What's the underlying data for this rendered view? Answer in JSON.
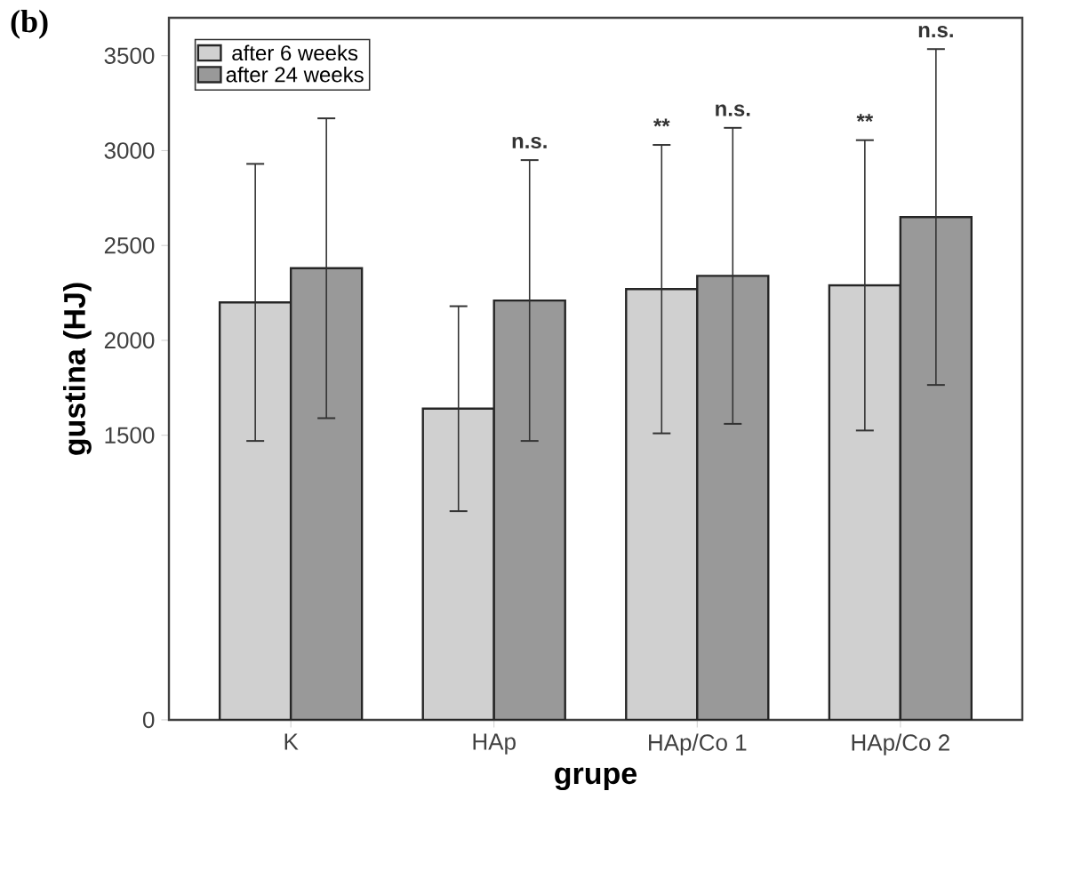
{
  "chart_data": {
    "type": "bar",
    "xlabel": "grupe",
    "ylabel": "gustina (HJ)",
    "categories": [
      "K",
      "HAp",
      "HAp/Co 1",
      "HAp/Co 2"
    ],
    "series": [
      {
        "name": "after 6 weeks",
        "color": "#d0d0d0",
        "values": [
          2200,
          1640,
          2270,
          2290
        ],
        "errors": [
          730,
          540,
          760,
          765
        ]
      },
      {
        "name": "after 24 weeks",
        "color": "#999999",
        "values": [
          2380,
          2210,
          2340,
          2650
        ],
        "errors": [
          790,
          740,
          780,
          885
        ]
      }
    ],
    "ylim": [
      0,
      3700
    ],
    "yticks": [
      0,
      1500,
      2000,
      2500,
      3000,
      3500
    ],
    "legend": "top left",
    "annotations": [
      "(b)",
      "n.s.",
      "**",
      "n.s.",
      "**",
      "n.s."
    ]
  }
}
